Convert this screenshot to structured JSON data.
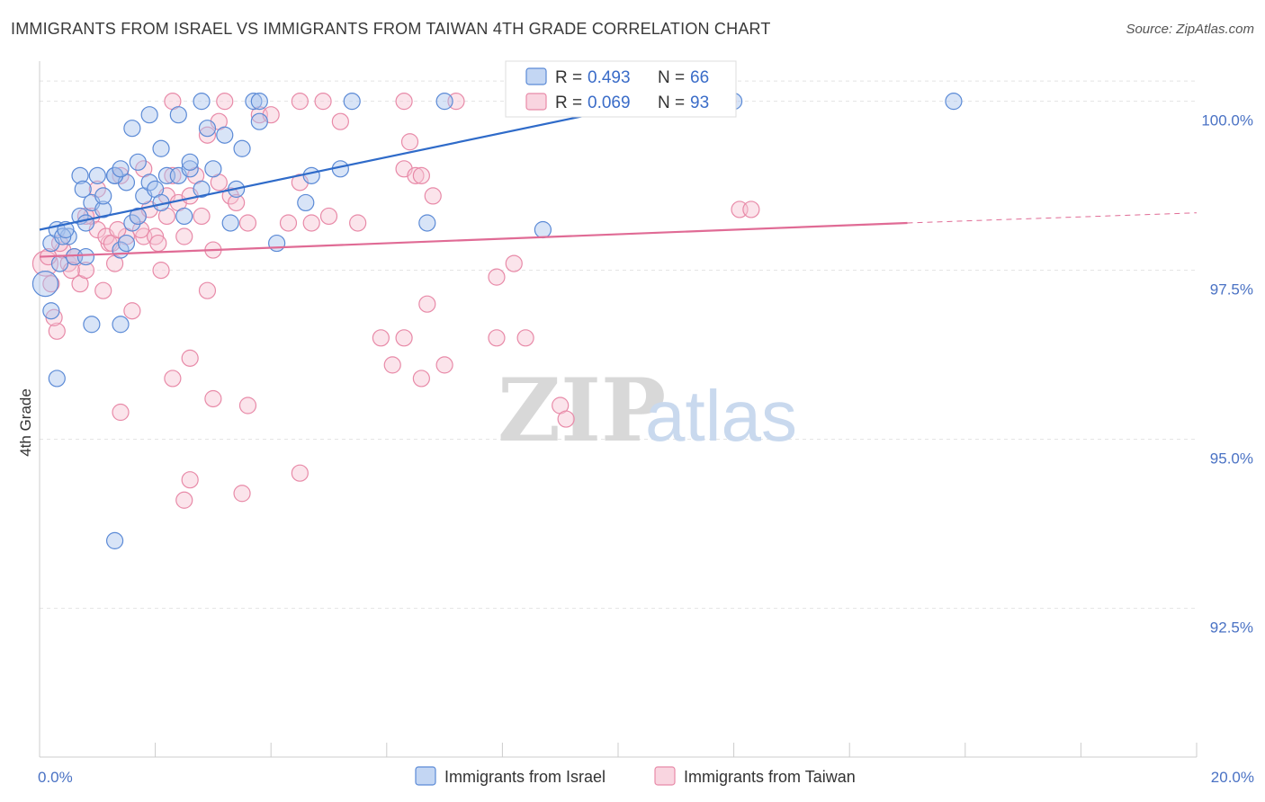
{
  "header": {
    "title": "IMMIGRANTS FROM ISRAEL VS IMMIGRANTS FROM TAIWAN 4TH GRADE CORRELATION CHART",
    "source": "Source: ZipAtlas.com"
  },
  "watermark": {
    "zip": "ZIP",
    "atlas": "atlas"
  },
  "colors": {
    "israel_fill": "#a9c4ee",
    "israel_stroke": "#5b8ad6",
    "israel_line": "#2f6bc9",
    "taiwan_fill": "#f6c3d3",
    "taiwan_stroke": "#e88aa8",
    "taiwan_line": "#e06b95",
    "tick_label": "#4a72c4",
    "grid": "#e3e3e3"
  },
  "legend": {
    "r_label": "R =",
    "n_label": "N =",
    "israel": {
      "r": "0.493",
      "n": "66"
    },
    "taiwan": {
      "r": "0.069",
      "n": "93"
    }
  },
  "chart_data": {
    "type": "scatter",
    "title": "IMMIGRANTS FROM ISRAEL VS IMMIGRANTS FROM TAIWAN 4TH GRADE CORRELATION CHART",
    "xlabel": "",
    "ylabel": "4th Grade",
    "xlim": [
      0,
      20
    ],
    "ylim": [
      90.3,
      100.7
    ],
    "x_tick_labels": [
      "0.0%",
      "20.0%"
    ],
    "y_ticks": [
      {
        "value": 100.0,
        "label": "100.0%"
      },
      {
        "value": 97.5,
        "label": "97.5%"
      },
      {
        "value": 95.0,
        "label": "95.0%"
      },
      {
        "value": 92.5,
        "label": "92.5%"
      }
    ],
    "grid": true,
    "legend_position": "top-center",
    "series": [
      {
        "name": "Immigrants from Israel",
        "trend": {
          "x": [
            0,
            10.9
          ],
          "y": [
            98.1,
            100.05
          ]
        },
        "points": [
          [
            0.1,
            97.3,
            14
          ],
          [
            0.2,
            97.9,
            9
          ],
          [
            0.3,
            98.1,
            9
          ],
          [
            0.5,
            98.0,
            9
          ],
          [
            0.2,
            96.9,
            9
          ],
          [
            0.4,
            98.0,
            9
          ],
          [
            0.6,
            97.7,
            9
          ],
          [
            0.7,
            98.3,
            9
          ],
          [
            0.8,
            98.2,
            9
          ],
          [
            0.9,
            98.5,
            9
          ],
          [
            0.7,
            98.9,
            9
          ],
          [
            0.75,
            98.7,
            9
          ],
          [
            1.0,
            98.9,
            9
          ],
          [
            1.1,
            98.4,
            9
          ],
          [
            1.3,
            98.9,
            9
          ],
          [
            1.5,
            98.8,
            9
          ],
          [
            1.6,
            98.2,
            9
          ],
          [
            1.7,
            98.3,
            9
          ],
          [
            1.8,
            98.6,
            9
          ],
          [
            1.9,
            98.8,
            9
          ],
          [
            2.0,
            98.7,
            9
          ],
          [
            2.1,
            98.5,
            9
          ],
          [
            2.2,
            98.9,
            9
          ],
          [
            2.4,
            98.9,
            9
          ],
          [
            2.6,
            99.0,
            9
          ],
          [
            2.8,
            98.7,
            9
          ],
          [
            3.0,
            99.0,
            9
          ],
          [
            3.2,
            99.5,
            9
          ],
          [
            3.4,
            98.7,
            9
          ],
          [
            3.5,
            99.3,
            9
          ],
          [
            1.3,
            98.9,
            9
          ],
          [
            1.4,
            99.0,
            9
          ],
          [
            1.7,
            99.1,
            9
          ],
          [
            2.1,
            99.3,
            9
          ],
          [
            2.6,
            99.1,
            9
          ],
          [
            1.6,
            99.6,
            9
          ],
          [
            1.9,
            99.8,
            9
          ],
          [
            2.4,
            99.8,
            9
          ],
          [
            2.9,
            99.6,
            9
          ],
          [
            3.8,
            99.7,
            9
          ],
          [
            2.8,
            100.0,
            9
          ],
          [
            3.7,
            100.0,
            9
          ],
          [
            3.8,
            100.0,
            9
          ],
          [
            5.4,
            100.0,
            9
          ],
          [
            7.0,
            100.0,
            9
          ],
          [
            4.7,
            98.9,
            9
          ],
          [
            5.2,
            99.0,
            9
          ],
          [
            4.6,
            98.5,
            9
          ],
          [
            6.7,
            98.2,
            9
          ],
          [
            8.7,
            98.1,
            9
          ],
          [
            10.9,
            100.0,
            9
          ],
          [
            12.0,
            100.0,
            9
          ],
          [
            15.8,
            100.0,
            9
          ],
          [
            4.1,
            97.9,
            9
          ],
          [
            1.4,
            97.8,
            9
          ],
          [
            0.9,
            96.7,
            9
          ],
          [
            1.4,
            96.7,
            9
          ],
          [
            0.3,
            95.9,
            9
          ],
          [
            1.3,
            93.5,
            9
          ],
          [
            0.8,
            97.7,
            9
          ],
          [
            1.5,
            97.9,
            9
          ],
          [
            3.3,
            98.2,
            9
          ],
          [
            2.5,
            98.3,
            9
          ],
          [
            0.35,
            97.6,
            9
          ],
          [
            1.1,
            98.6,
            9
          ],
          [
            0.45,
            98.1,
            9
          ]
        ]
      },
      {
        "name": "Immigrants from Taiwan",
        "trend": {
          "x": [
            0,
            15.0
          ],
          "y": [
            97.7,
            98.2
          ]
        },
        "trend_extension": {
          "x": [
            15.0,
            20.0
          ],
          "y": [
            98.2,
            98.35
          ]
        },
        "points": [
          [
            0.1,
            97.6,
            14
          ],
          [
            0.2,
            97.3,
            9
          ],
          [
            0.3,
            96.6,
            9
          ],
          [
            0.25,
            96.8,
            9
          ],
          [
            0.4,
            97.8,
            9
          ],
          [
            0.5,
            97.6,
            9
          ],
          [
            0.6,
            97.7,
            9
          ],
          [
            0.7,
            97.3,
            9
          ],
          [
            0.8,
            97.5,
            9
          ],
          [
            0.9,
            98.3,
            9
          ],
          [
            1.0,
            98.1,
            9
          ],
          [
            1.1,
            97.2,
            9
          ],
          [
            1.2,
            97.9,
            9
          ],
          [
            1.3,
            97.6,
            9
          ],
          [
            1.4,
            98.9,
            9
          ],
          [
            1.5,
            98.0,
            9
          ],
          [
            1.6,
            96.9,
            9
          ],
          [
            1.7,
            98.3,
            9
          ],
          [
            1.8,
            98.0,
            9
          ],
          [
            1.9,
            98.4,
            9
          ],
          [
            2.0,
            98.0,
            9
          ],
          [
            2.1,
            97.5,
            9
          ],
          [
            2.2,
            98.6,
            9
          ],
          [
            2.3,
            98.9,
            9
          ],
          [
            2.4,
            98.5,
            9
          ],
          [
            2.5,
            98.0,
            9
          ],
          [
            2.6,
            98.6,
            9
          ],
          [
            2.7,
            98.9,
            9
          ],
          [
            2.8,
            98.3,
            9
          ],
          [
            2.9,
            97.2,
            9
          ],
          [
            3.0,
            97.8,
            9
          ],
          [
            3.1,
            98.8,
            9
          ],
          [
            3.3,
            98.6,
            9
          ],
          [
            3.4,
            98.5,
            9
          ],
          [
            3.6,
            98.2,
            9
          ],
          [
            3.8,
            99.8,
            9
          ],
          [
            4.0,
            99.8,
            9
          ],
          [
            4.3,
            98.2,
            9
          ],
          [
            4.5,
            98.8,
            9
          ],
          [
            4.7,
            98.2,
            9
          ],
          [
            5.0,
            98.3,
            9
          ],
          [
            5.5,
            98.2,
            9
          ],
          [
            6.3,
            99.0,
            9
          ],
          [
            6.5,
            98.9,
            9
          ],
          [
            6.6,
            98.9,
            9
          ],
          [
            6.4,
            99.4,
            9
          ],
          [
            6.8,
            98.6,
            9
          ],
          [
            2.3,
            100.0,
            9
          ],
          [
            3.2,
            100.0,
            9
          ],
          [
            4.5,
            100.0,
            9
          ],
          [
            4.9,
            100.0,
            9
          ],
          [
            6.3,
            100.0,
            9
          ],
          [
            7.2,
            100.0,
            9
          ],
          [
            11.9,
            100.0,
            9
          ],
          [
            1.8,
            99.0,
            9
          ],
          [
            2.2,
            98.3,
            9
          ],
          [
            3.1,
            99.7,
            9
          ],
          [
            5.2,
            99.7,
            9
          ],
          [
            2.9,
            99.5,
            9
          ],
          [
            1.0,
            98.7,
            9
          ],
          [
            0.6,
            97.7,
            9
          ],
          [
            0.8,
            98.3,
            9
          ],
          [
            1.15,
            98.0,
            9
          ],
          [
            1.25,
            97.9,
            9
          ],
          [
            7.9,
            97.4,
            9
          ],
          [
            8.2,
            97.6,
            9
          ],
          [
            6.7,
            97.0,
            9
          ],
          [
            5.9,
            96.5,
            9
          ],
          [
            6.3,
            96.5,
            9
          ],
          [
            7.9,
            96.5,
            9
          ],
          [
            8.4,
            96.5,
            9
          ],
          [
            6.1,
            96.1,
            9
          ],
          [
            6.6,
            95.9,
            9
          ],
          [
            7.0,
            96.1,
            9
          ],
          [
            9.0,
            95.5,
            9
          ],
          [
            9.1,
            95.3,
            9
          ],
          [
            2.6,
            96.2,
            9
          ],
          [
            2.3,
            95.9,
            9
          ],
          [
            3.0,
            95.6,
            9
          ],
          [
            3.6,
            95.5,
            9
          ],
          [
            1.4,
            95.4,
            9
          ],
          [
            2.6,
            94.4,
            9
          ],
          [
            4.5,
            94.5,
            9
          ],
          [
            2.5,
            94.1,
            9
          ],
          [
            3.5,
            94.2,
            9
          ],
          [
            12.1,
            98.4,
            9
          ],
          [
            12.3,
            98.4,
            9
          ],
          [
            0.15,
            97.7,
            9
          ],
          [
            0.35,
            97.9,
            9
          ],
          [
            0.55,
            97.5,
            9
          ],
          [
            1.35,
            98.1,
            9
          ],
          [
            2.05,
            97.9,
            9
          ],
          [
            1.75,
            98.1,
            9
          ]
        ]
      }
    ],
    "bottom_legend": [
      "Immigrants from Israel",
      "Immigrants from Taiwan"
    ]
  }
}
